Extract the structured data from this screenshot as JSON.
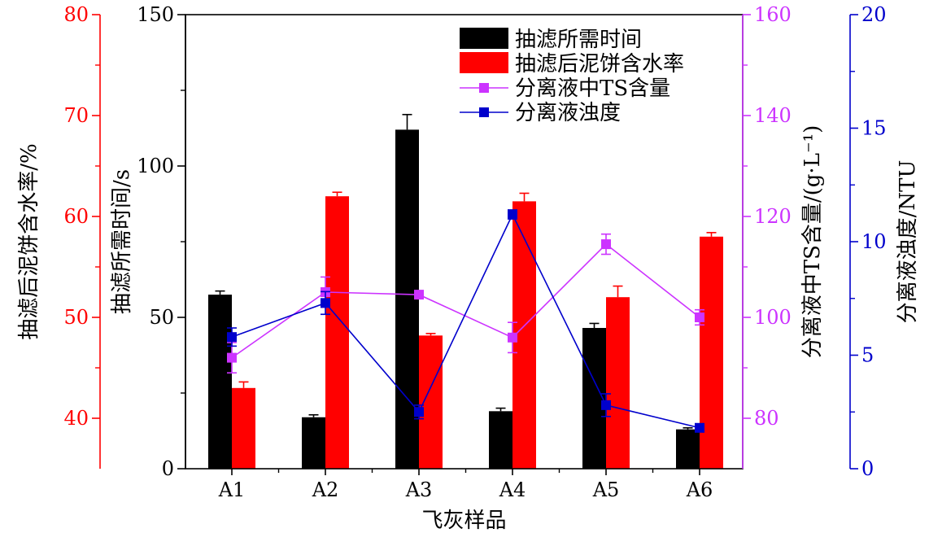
{
  "chart_data": {
    "type": "bar",
    "categories": [
      "A1",
      "A2",
      "A3",
      "A4",
      "A5",
      "A6"
    ],
    "xlabel": "飞灰样品",
    "axes": {
      "time": {
        "label": "抽滤所需时间/s",
        "range": [
          0,
          150
        ],
        "ticks": [
          "0",
          "50",
          "100",
          "150"
        ],
        "color": "#000000"
      },
      "moisture": {
        "label": "抽滤后泥饼含水率/%",
        "range": [
          35,
          80
        ],
        "ticks": [
          "40",
          "50",
          "60",
          "70",
          "80"
        ],
        "color": "#ff0000"
      },
      "ts": {
        "label": "分离液中TS含量/(g·L⁻¹)",
        "range": [
          70,
          160
        ],
        "ticks": [
          "80",
          "100",
          "120",
          "140",
          "160"
        ],
        "color": "#cc33ff"
      },
      "turbidity": {
        "label": "分离液浊度/NTU",
        "range": [
          0,
          20
        ],
        "ticks": [
          "0",
          "5",
          "10",
          "15",
          "20"
        ],
        "color": "#0000cc"
      }
    },
    "series": [
      {
        "name": "抽滤所需时间",
        "kind": "bar",
        "axis": "time",
        "color": "#000000",
        "values": [
          57.5,
          17,
          112,
          19,
          46.5,
          13
        ],
        "errors": [
          1.2,
          0.8,
          5,
          1,
          1.5,
          0.5
        ]
      },
      {
        "name": "抽滤后泥饼含水率",
        "kind": "bar",
        "axis": "moisture",
        "color": "#ff0000",
        "values": [
          43,
          62,
          48.2,
          61.5,
          52,
          58
        ],
        "errors": [
          0.6,
          0.4,
          0.2,
          0.8,
          1.1,
          0.4
        ]
      },
      {
        "name": "分离液中TS含量",
        "kind": "line",
        "axis": "ts",
        "color": "#cc33ff",
        "values": [
          92,
          105,
          104.5,
          96,
          114.5,
          100
        ],
        "errors": [
          3,
          3,
          0.5,
          3,
          2,
          1.5
        ]
      },
      {
        "name": "分离液浊度",
        "kind": "line",
        "axis": "turbidity",
        "color": "#0000cc",
        "values": [
          5.8,
          7.3,
          2.5,
          11.2,
          2.8,
          1.8
        ],
        "errors": [
          0.4,
          0.5,
          0.3,
          0.2,
          0.5,
          0.1
        ]
      }
    ],
    "legend": {
      "placement": "top-right"
    }
  }
}
